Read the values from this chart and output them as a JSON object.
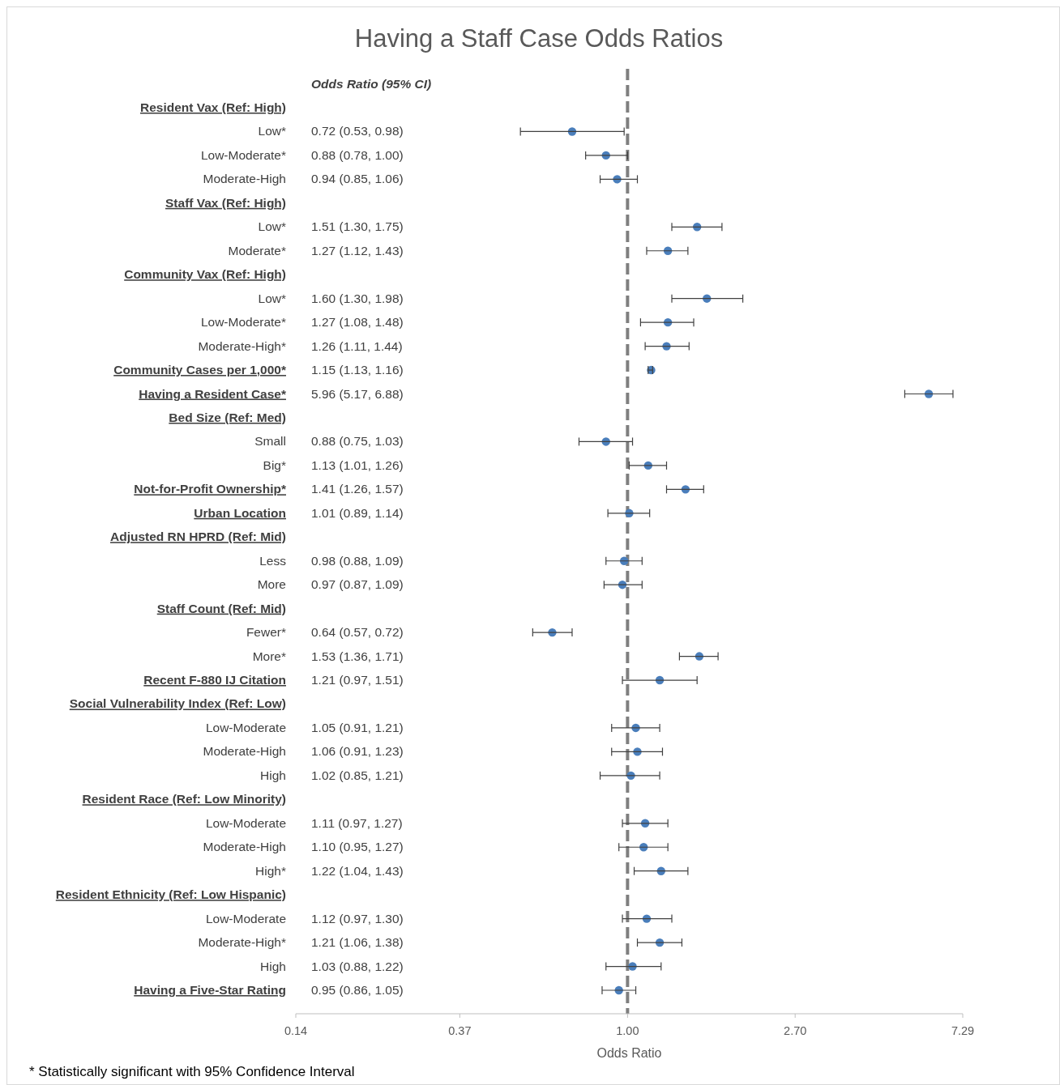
{
  "chart_data": {
    "type": "scatter",
    "orientation": "horizontal",
    "title": "Having a Staff Case Odds Ratios",
    "xlabel": "Odds Ratio",
    "log": "x",
    "marker": "circle",
    "annotations": [
      "Odds Ratio (95% CI)",
      "* Statistically significant with 95% Confidence Interval",
      "0.72 (0.53, 0.98)",
      "0.88 (0.78, 1.00)",
      "0.94 (0.85, 1.06)",
      "1.51 (1.30, 1.75)",
      "1.27 (1.12, 1.43)",
      "1.60 (1.30, 1.98)",
      "1.27 (1.08, 1.48)",
      "1.26 (1.11, 1.44)",
      "1.15 (1.13, 1.16)",
      "5.96 (5.17, 6.88)",
      "0.88 (0.75, 1.03)",
      "1.13 (1.01, 1.26)",
      "1.41 (1.26, 1.57)",
      "1.01 (0.89, 1.14)",
      "0.98 (0.88, 1.09)",
      "0.97 (0.87, 1.09)",
      "0.64 (0.57, 0.72)",
      "1.53 (1.36, 1.71)",
      "1.21 (0.97, 1.51)",
      "1.05 (0.91, 1.21)",
      "1.06 (0.91, 1.23)",
      "1.02 (0.85, 1.21)",
      "1.11 (0.97, 1.27)",
      "1.10 (0.95, 1.27)",
      "1.22 (1.04, 1.43)",
      "1.12 (0.97, 1.30)",
      "1.21 (1.06, 1.38)",
      "1.03 (0.88, 1.22)",
      "0.95 (0.86, 1.05)"
    ],
    "categories": [
      "Resident Vax (Ref: High)",
      "Low*",
      "Low-Moderate*",
      "Moderate-High",
      "Staff Vax (Ref: High)",
      "Low*",
      "Moderate*",
      "Community Vax (Ref: High)",
      "Low*",
      "Low-Moderate*",
      "Moderate-High*",
      "Community Cases per 1,000*",
      "Having a Resident Case*",
      "Bed Size (Ref: Med)",
      "Small",
      "Big*",
      "Not-for-Profit Ownership*",
      "Urban Location",
      "Adjusted RN HPRD (Ref: Mid)",
      "Less",
      "More",
      "Staff Count (Ref: Mid)",
      "Fewer*",
      "More*",
      "Recent F-880 IJ Citation",
      "Social Vulnerability Index (Ref: Low)",
      "Low-Moderate",
      "Moderate-High",
      "High",
      "Resident Race (Ref: Low Minority)",
      "Low-Moderate",
      "Moderate-High",
      "High*",
      "Resident Ethnicity (Ref: Low Hispanic)",
      "Low-Moderate",
      "Moderate-High*",
      "High",
      "Having a Five-Star Rating"
    ],
    "series": [
      {
        "color": "#4a7ebb",
        "values": [
          null,
          null,
          null,
          null,
          null,
          null,
          null,
          null,
          null,
          null,
          null,
          1.15,
          5.96,
          null,
          null,
          null,
          1.41,
          1.01,
          null,
          null,
          null,
          null,
          null,
          null,
          1.21,
          null,
          null,
          null,
          null,
          null,
          null,
          null,
          null,
          null,
          null,
          null,
          null,
          0.95
        ],
        "errors": [
          null,
          null,
          null,
          null,
          null,
          null,
          null,
          null,
          null,
          null,
          null,
          [
            1.13,
            1.16
          ],
          [
            5.17,
            6.88
          ],
          null,
          null,
          null,
          [
            1.26,
            1.57
          ],
          [
            0.89,
            1.14
          ],
          null,
          null,
          null,
          null,
          null,
          null,
          [
            0.97,
            1.51
          ],
          null,
          null,
          null,
          null,
          null,
          null,
          null,
          null,
          null,
          null,
          null,
          null,
          [
            0.86,
            1.05
          ]
        ]
      },
      {
        "color": "#4a7ebb",
        "values": [
          null,
          0.72,
          0.88,
          0.94,
          null,
          1.51,
          1.27,
          null,
          1.6,
          1.27,
          1.26,
          null,
          null,
          null,
          0.88,
          1.13,
          null,
          null,
          null,
          0.98,
          0.97,
          null,
          0.64,
          1.53,
          null,
          null,
          1.05,
          1.06,
          1.02,
          null,
          1.11,
          1.1,
          1.22,
          null,
          1.12,
          1.21,
          1.03,
          null
        ],
        "errors": [
          null,
          [
            0.53,
            0.98
          ],
          [
            0.78,
            1.0
          ],
          [
            0.85,
            1.06
          ],
          null,
          [
            1.3,
            1.75
          ],
          [
            1.12,
            1.43
          ],
          null,
          [
            1.3,
            1.98
          ],
          [
            1.08,
            1.48
          ],
          [
            1.11,
            1.44
          ],
          null,
          null,
          null,
          [
            0.75,
            1.03
          ],
          [
            1.01,
            1.26
          ],
          null,
          null,
          null,
          [
            0.88,
            1.09
          ],
          [
            0.87,
            1.09
          ],
          null,
          [
            0.57,
            0.72
          ],
          [
            1.36,
            1.71
          ],
          null,
          null,
          [
            0.91,
            1.21
          ],
          [
            0.91,
            1.23
          ],
          [
            0.85,
            1.21
          ],
          null,
          [
            0.97,
            1.27
          ],
          [
            0.95,
            1.27
          ],
          [
            1.04,
            1.43
          ],
          null,
          [
            0.97,
            1.3
          ],
          [
            1.06,
            1.38
          ],
          [
            0.88,
            1.22
          ],
          null
        ]
      }
    ],
    "xlim": [
      0.14,
      7.29
    ],
    "xticks": [
      0.14,
      0.37,
      {
        "value": 1,
        "label": "1.00"
      },
      {
        "value": 2.7,
        "label": "2.70"
      },
      7.29
    ],
    "ref_lines": [
      {
        "axis": "x",
        "value": 1,
        "color": "#7f7f7f",
        "line_style": "dashed"
      }
    ]
  }
}
